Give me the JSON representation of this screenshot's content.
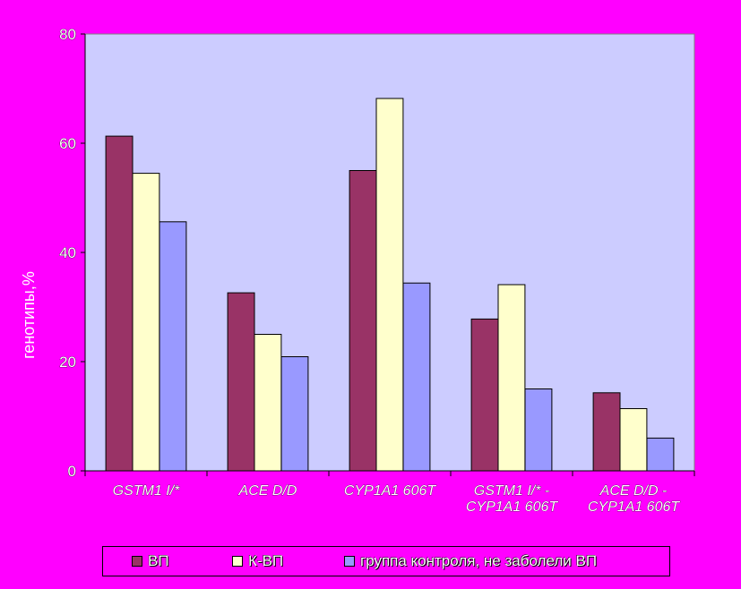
{
  "colors": {
    "background": "#FF00FF",
    "plot_area": "#CCCCFF",
    "series": [
      "#993366",
      "#FFFFCC",
      "#9999FF"
    ]
  },
  "chart_data": {
    "type": "bar",
    "categories": [
      [
        "GSTM1 I/*"
      ],
      [
        "ACE D/D"
      ],
      [
        "CYP1A1 606T"
      ],
      [
        "GSTM1 I/* -",
        "CYP1A1 606T"
      ],
      [
        "ACE D/D -",
        "CYP1A1 606T"
      ]
    ],
    "series": [
      {
        "name": "ВП",
        "values": [
          61.3,
          32.6,
          55,
          27.8,
          14.3
        ]
      },
      {
        "name": "К-ВП",
        "values": [
          54.5,
          25,
          68.2,
          34.1,
          11.4
        ]
      },
      {
        "name": "группа контроля, не заболели ВП",
        "values": [
          45.6,
          20.9,
          34.4,
          15,
          6
        ]
      }
    ],
    "xlabel": "",
    "ylabel": "генотипы,%",
    "ylim": [
      0,
      80
    ],
    "yticks": [
      0,
      20,
      40,
      60,
      80
    ],
    "grid": false,
    "legend_position": "bottom"
  }
}
